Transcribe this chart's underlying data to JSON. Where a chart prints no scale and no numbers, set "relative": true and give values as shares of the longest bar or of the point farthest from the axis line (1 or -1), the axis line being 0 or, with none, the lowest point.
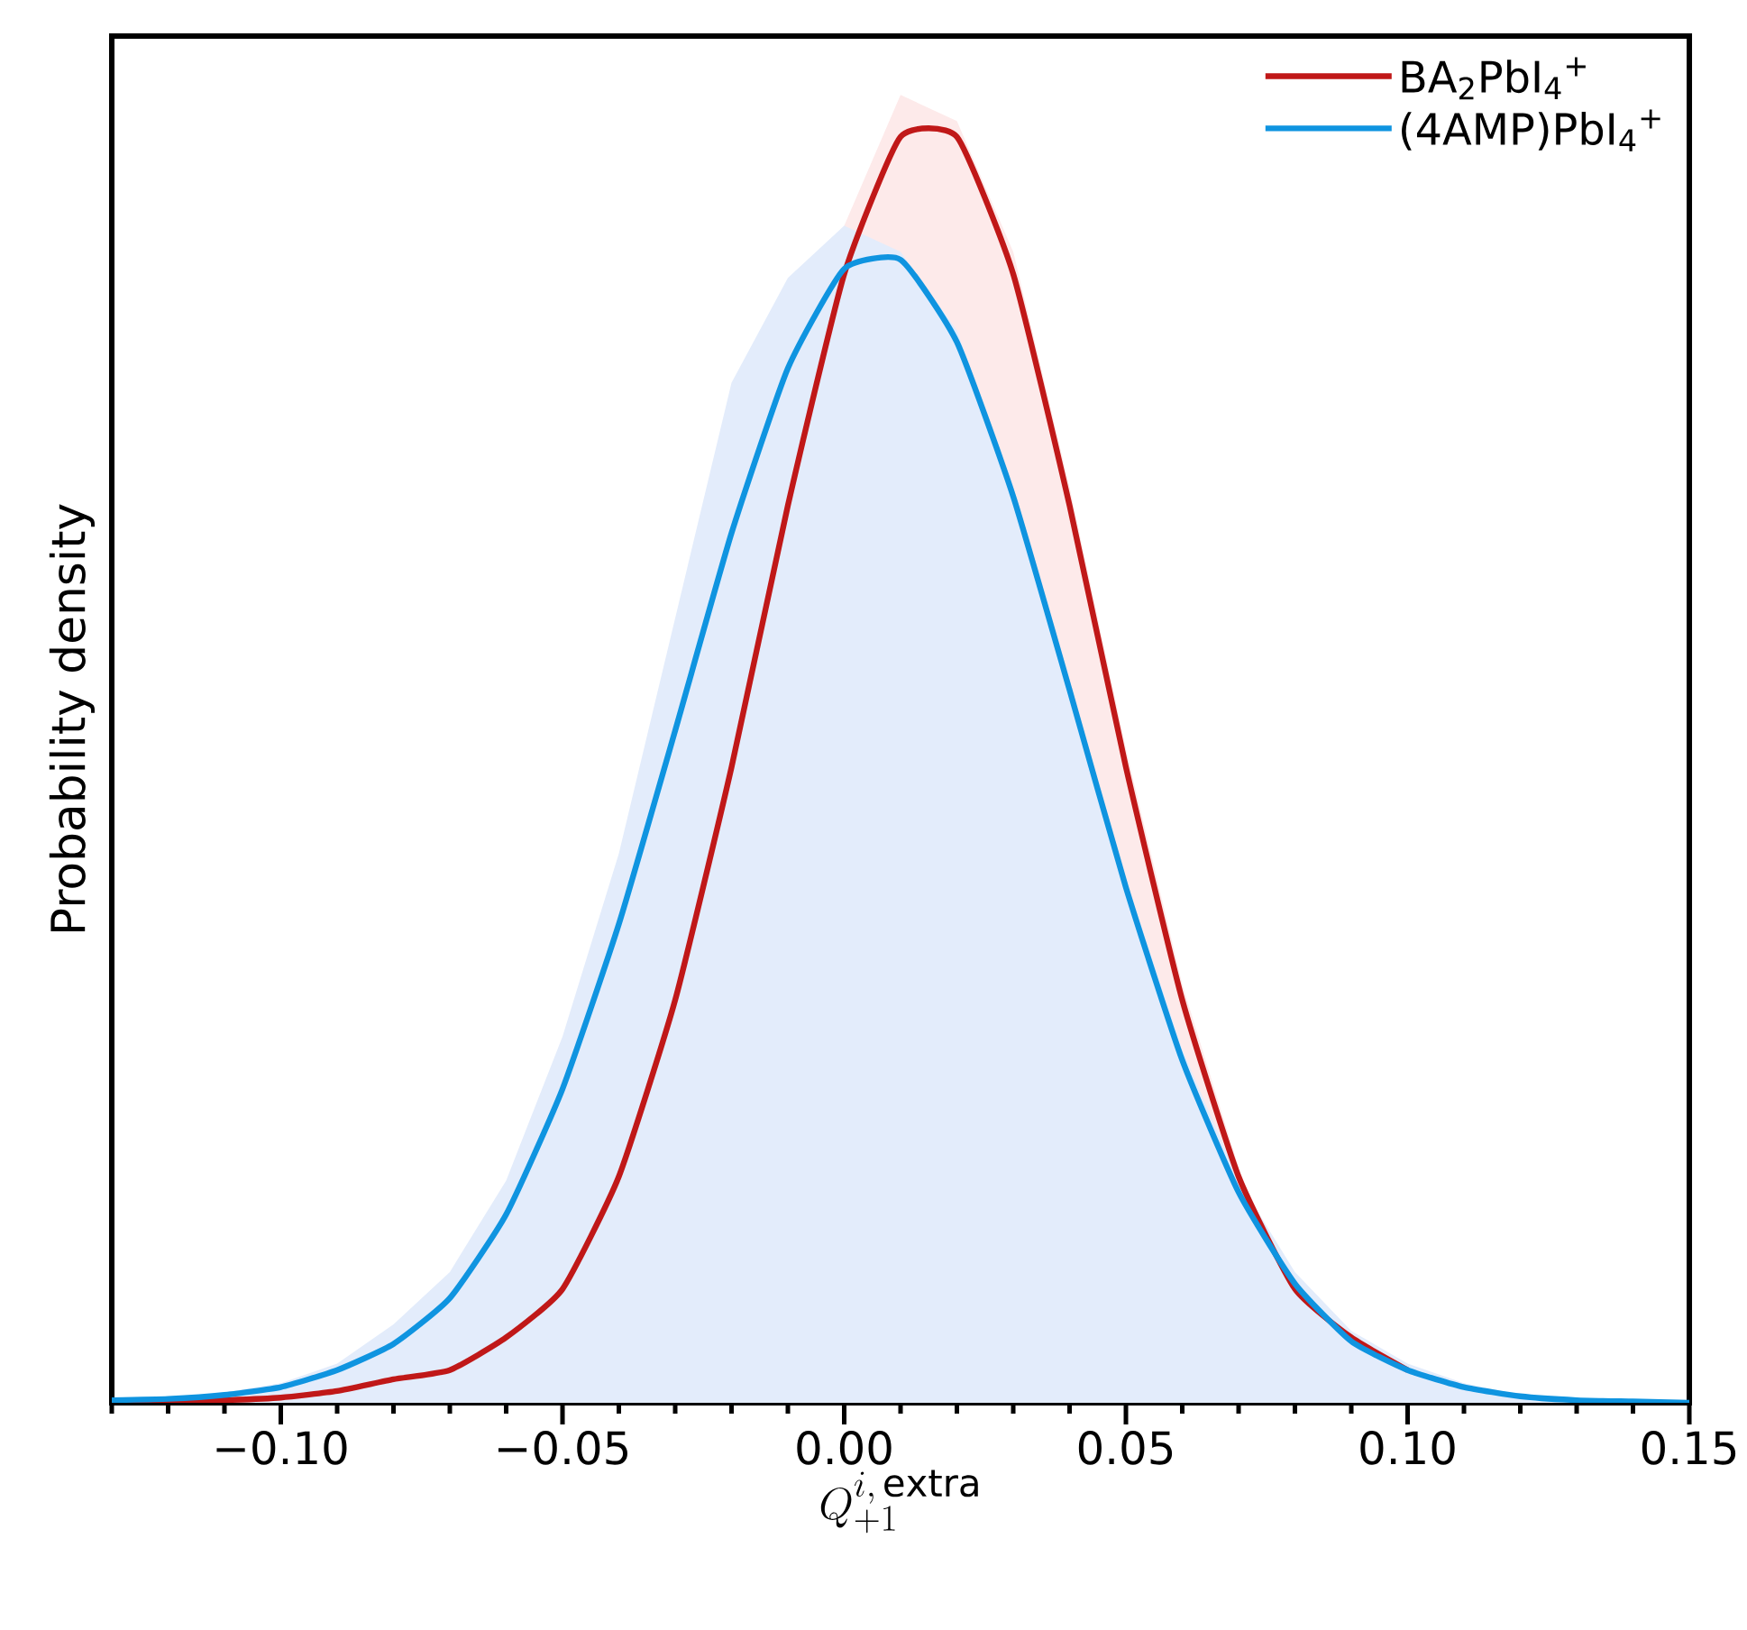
{
  "chart_data": {
    "type": "line",
    "relative": true,
    "xlabel": "Q^{i,\\,\\mathrm{extra}}_{+1}",
    "ylabel": "Probability density",
    "xlim": [
      -0.13,
      0.15
    ],
    "xticks": [
      {
        "value": -0.13,
        "label": null
      },
      {
        "value": -0.12,
        "label": null
      },
      {
        "value": -0.11,
        "label": null
      },
      {
        "value": -0.1,
        "label": "−0.10"
      },
      {
        "value": -0.09,
        "label": null
      },
      {
        "value": -0.08,
        "label": null
      },
      {
        "value": -0.07,
        "label": null
      },
      {
        "value": -0.06,
        "label": null
      },
      {
        "value": -0.05,
        "label": "−0.05"
      },
      {
        "value": -0.04,
        "label": null
      },
      {
        "value": -0.03,
        "label": null
      },
      {
        "value": -0.02,
        "label": null
      },
      {
        "value": -0.01,
        "label": null
      },
      {
        "value": 0.0,
        "label": "0.00"
      },
      {
        "value": 0.01,
        "label": null
      },
      {
        "value": 0.02,
        "label": null
      },
      {
        "value": 0.03,
        "label": null
      },
      {
        "value": 0.04,
        "label": null
      },
      {
        "value": 0.05,
        "label": "0.05"
      },
      {
        "value": 0.06,
        "label": null
      },
      {
        "value": 0.07,
        "label": null
      },
      {
        "value": 0.08,
        "label": null
      },
      {
        "value": 0.09,
        "label": null
      },
      {
        "value": 0.1,
        "label": "0.10"
      },
      {
        "value": 0.11,
        "label": null
      },
      {
        "value": 0.12,
        "label": null
      },
      {
        "value": 0.13,
        "label": null
      },
      {
        "value": 0.14,
        "label": null
      },
      {
        "value": 0.15,
        "label": "0.15"
      }
    ],
    "x": [
      -0.13,
      -0.12,
      -0.11,
      -0.1,
      -0.09,
      -0.08,
      -0.07,
      -0.06,
      -0.05,
      -0.04,
      -0.03,
      -0.02,
      -0.01,
      0.0,
      0.01,
      0.02,
      0.03,
      0.04,
      0.05,
      0.06,
      0.07,
      0.08,
      0.09,
      0.1,
      0.11,
      0.12,
      0.13,
      0.14,
      0.15
    ],
    "legend": "top right",
    "marker": "none",
    "line_style": "solid",
    "grid": false,
    "series": [
      {
        "type": "area",
        "color": "#fdeaea",
        "values": [
          null,
          null,
          null,
          null,
          null,
          null,
          null,
          null,
          null,
          null,
          null,
          null,
          null,
          0.9,
          1.0,
          0.98,
          0.88,
          0.7,
          0.5,
          0.32,
          0.18,
          null,
          null,
          null,
          null,
          null,
          null,
          null,
          null
        ]
      },
      {
        "type": "area",
        "color": "#e3ecfb",
        "values": [
          0.002,
          0.004,
          0.008,
          0.015,
          0.03,
          0.06,
          0.1,
          0.17,
          0.28,
          0.42,
          0.6,
          0.78,
          0.86,
          0.9,
          0.88,
          0.82,
          0.7,
          0.55,
          0.4,
          0.27,
          0.17,
          0.1,
          0.055,
          0.03,
          0.015,
          0.006,
          0.003,
          0.001,
          0.0
        ]
      },
      {
        "name": "BA$_{2}$PbI$_{4}$$^{+}$",
        "color": "#c01818",
        "values": [
          0.0,
          0.001,
          0.002,
          0.004,
          0.009,
          0.018,
          0.025,
          0.05,
          0.087,
          0.173,
          0.308,
          0.486,
          0.686,
          0.863,
          0.968,
          0.968,
          0.863,
          0.686,
          0.486,
          0.308,
          0.173,
          0.087,
          0.05,
          0.025,
          null,
          null,
          null,
          null,
          null
        ]
      },
      {
        "name": "(4AMP)PbI$_{4}$$^{+}$",
        "color": "#0f94e0",
        "values": [
          0.002,
          0.003,
          0.006,
          0.012,
          0.025,
          0.045,
          0.08,
          0.144,
          0.24,
          0.366,
          0.514,
          0.665,
          0.791,
          0.867,
          0.874,
          0.811,
          0.693,
          0.545,
          0.394,
          0.262,
          0.161,
          0.091,
          0.047,
          0.025,
          0.012,
          0.005,
          0.002,
          0.001,
          0.0
        ]
      }
    ]
  }
}
